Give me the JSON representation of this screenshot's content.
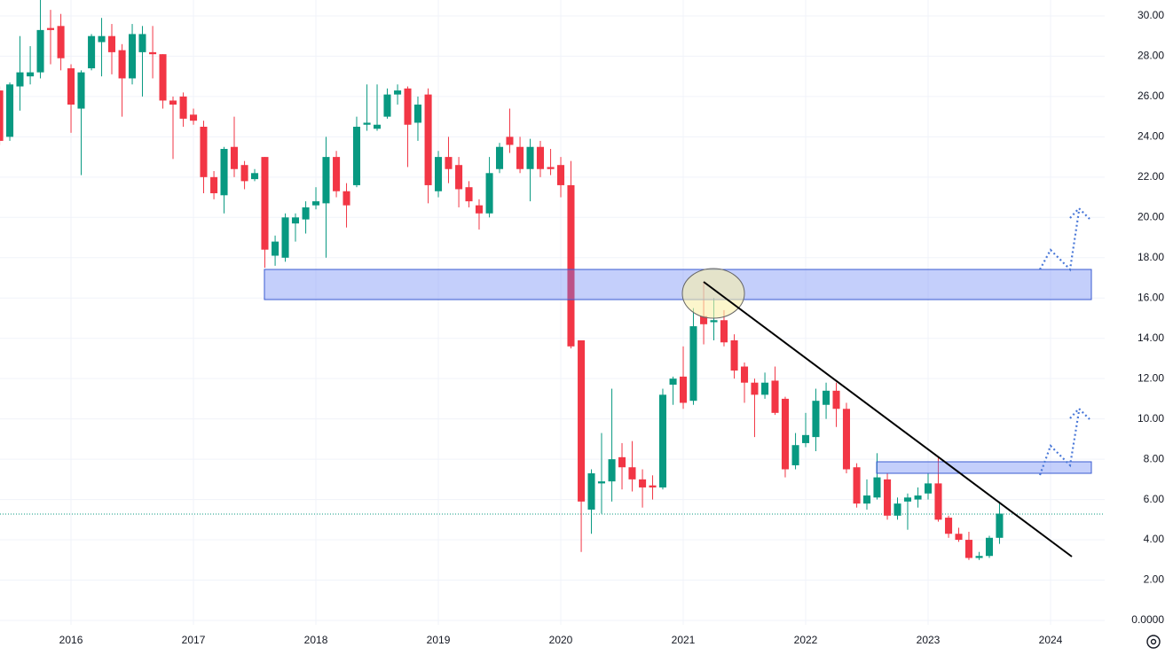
{
  "chart_data": {
    "type": "candlestick",
    "x": [
      2015.417,
      2015.5,
      2015.583,
      2015.667,
      2015.75,
      2015.833,
      2015.917,
      2016,
      2016.083,
      2016.167,
      2016.25,
      2016.333,
      2016.417,
      2016.5,
      2016.583,
      2016.667,
      2016.75,
      2016.833,
      2016.917,
      2017,
      2017.083,
      2017.167,
      2017.25,
      2017.333,
      2017.417,
      2017.5,
      2017.583,
      2017.667,
      2017.75,
      2017.833,
      2017.917,
      2018,
      2018.083,
      2018.167,
      2018.25,
      2018.333,
      2018.417,
      2018.5,
      2018.583,
      2018.667,
      2018.75,
      2018.833,
      2018.917,
      2019,
      2019.083,
      2019.167,
      2019.25,
      2019.333,
      2019.417,
      2019.5,
      2019.583,
      2019.667,
      2019.75,
      2019.833,
      2019.917,
      2020,
      2020.083,
      2020.167,
      2020.25,
      2020.333,
      2020.417,
      2020.5,
      2020.583,
      2020.667,
      2020.75,
      2020.833,
      2020.917,
      2021,
      2021.083,
      2021.167,
      2021.25,
      2021.333,
      2021.417,
      2021.5,
      2021.583,
      2021.667,
      2021.75,
      2021.833,
      2021.917,
      2022,
      2022.083,
      2022.167,
      2022.25,
      2022.333,
      2022.417,
      2022.5,
      2022.583,
      2022.667,
      2022.75,
      2022.833,
      2022.917,
      2023,
      2023.083,
      2023.167,
      2023.25,
      2023.333,
      2023.417,
      2023.5,
      2023.583
    ],
    "open": [
      26.3,
      24.0,
      26.5,
      27.0,
      27.2,
      29.4,
      29.5,
      27.4,
      25.4,
      27.4,
      28.7,
      29.0,
      28.3,
      26.9,
      28.2,
      28.2,
      28.1,
      25.8,
      26.0,
      25.1,
      24.5,
      22.0,
      21.1,
      23.5,
      22.6,
      21.9,
      23.0,
      18.1,
      18.0,
      19.7,
      19.9,
      20.6,
      20.7,
      23.0,
      21.3,
      21.6,
      24.6,
      24.4,
      25.0,
      26.1,
      26.4,
      24.7,
      26.1,
      21.3,
      23.0,
      22.6,
      21.5,
      20.6,
      20.2,
      22.4,
      24.0,
      23.5,
      22.4,
      23.5,
      22.5,
      22.6,
      21.6,
      13.9,
      5.5,
      6.8,
      6.9,
      8.1,
      7.6,
      7.0,
      6.7,
      6.6,
      11.7,
      12.1,
      10.9,
      15.1,
      14.8,
      14.9,
      13.9,
      12.6,
      11.8,
      11.2,
      11.9,
      11.0,
      7.7,
      8.8,
      9.1,
      10.7,
      11.4,
      10.5,
      7.6,
      5.8,
      6.1,
      7.0,
      5.2,
      5.9,
      6.0,
      6.3,
      6.8,
      5.1,
      4.3,
      4.0,
      3.1,
      3.2,
      4.1
    ],
    "high": [
      26.5,
      26.7,
      29.0,
      28.5,
      30.9,
      30.3,
      30.1,
      27.6,
      27.3,
      29.1,
      29.9,
      29.6,
      28.6,
      29.6,
      29.5,
      29.5,
      28.1,
      26.0,
      26.2,
      25.4,
      24.8,
      22.3,
      23.5,
      25.0,
      22.8,
      22.4,
      23.0,
      19.1,
      20.2,
      20.2,
      20.8,
      21.5,
      24.0,
      23.3,
      21.7,
      25.0,
      26.6,
      26.6,
      26.4,
      26.6,
      26.5,
      26.0,
      26.4,
      23.3,
      24.0,
      23.0,
      21.8,
      20.9,
      23.0,
      23.7,
      25.4,
      24.0,
      23.9,
      23.8,
      23.4,
      23.0,
      22.8,
      13.9,
      7.5,
      9.3,
      11.5,
      8.8,
      8.9,
      7.5,
      7.2,
      11.5,
      12.1,
      13.6,
      15.5,
      16.8,
      16.0,
      15.4,
      14.2,
      12.8,
      12.0,
      12.3,
      12.6,
      11.1,
      9.3,
      10.3,
      11.5,
      11.8,
      11.8,
      10.8,
      7.8,
      7.0,
      8.3,
      7.3,
      6.1,
      6.3,
      6.6,
      7.3,
      8.1,
      5.2,
      4.6,
      4.4,
      3.4,
      4.2,
      5.9
    ],
    "low": [
      23.6,
      23.8,
      25.3,
      26.6,
      26.9,
      27.6,
      27.3,
      24.2,
      22.1,
      27.3,
      27.0,
      27.1,
      25.0,
      26.6,
      26.0,
      26.9,
      25.4,
      22.9,
      24.5,
      24.6,
      21.2,
      20.9,
      20.2,
      22.0,
      21.4,
      21.8,
      17.5,
      17.6,
      17.8,
      18.8,
      19.2,
      20.4,
      18.0,
      21.0,
      19.5,
      21.5,
      24.3,
      24.3,
      24.9,
      25.6,
      22.5,
      23.8,
      20.7,
      21.0,
      21.7,
      20.5,
      20.5,
      19.4,
      20.0,
      22.2,
      23.2,
      22.2,
      20.8,
      22.0,
      22.1,
      21.0,
      13.5,
      3.4,
      4.3,
      5.3,
      5.9,
      6.5,
      6.4,
      5.6,
      6.0,
      6.5,
      10.7,
      10.5,
      10.7,
      13.7,
      13.9,
      13.6,
      12.0,
      10.8,
      9.1,
      11.0,
      10.2,
      7.1,
      7.5,
      8.6,
      8.4,
      10.0,
      9.6,
      7.3,
      5.6,
      5.5,
      6.0,
      5.0,
      5.0,
      4.5,
      5.6,
      6.0,
      4.9,
      4.1,
      3.9,
      3.0,
      3.0,
      3.1,
      3.8
    ],
    "close": [
      23.8,
      26.6,
      27.2,
      27.2,
      29.3,
      29.3,
      27.9,
      25.6,
      27.2,
      29.0,
      29.0,
      28.2,
      26.9,
      29.1,
      29.1,
      28.1,
      25.8,
      25.6,
      24.9,
      24.8,
      22.0,
      21.2,
      23.4,
      22.4,
      21.8,
      22.2,
      18.4,
      18.8,
      20.0,
      20.0,
      20.5,
      20.8,
      23.0,
      21.3,
      20.6,
      24.5,
      24.7,
      24.6,
      26.1,
      26.3,
      24.6,
      25.6,
      21.6,
      23.0,
      22.4,
      21.4,
      20.8,
      20.2,
      22.2,
      23.5,
      23.6,
      22.4,
      23.5,
      22.4,
      22.4,
      21.6,
      13.6,
      5.9,
      7.3,
      6.9,
      8.0,
      7.6,
      7.0,
      6.6,
      6.6,
      11.2,
      12.0,
      10.8,
      14.6,
      14.7,
      14.9,
      13.8,
      12.4,
      11.8,
      11.2,
      11.8,
      10.3,
      7.5,
      8.7,
      9.2,
      10.9,
      11.4,
      10.5,
      7.5,
      5.8,
      6.2,
      7.1,
      5.2,
      5.8,
      6.1,
      6.2,
      6.8,
      5.0,
      4.3,
      4.0,
      3.1,
      3.2,
      4.1,
      5.3
    ],
    "up_color": "#089981",
    "down_color": "#f23645",
    "xlim": [
      2015.42,
      2024.442
    ],
    "xticks": [
      2016,
      2017,
      2018,
      2019,
      2020,
      2021,
      2022,
      2023,
      2024
    ],
    "ylim": [
      -0.22,
      30.79
    ],
    "yticks": [
      {
        "value": 0,
        "label": "0.0000"
      },
      {
        "value": 2,
        "label": "2.00"
      },
      {
        "value": 4,
        "label": "4.00"
      },
      {
        "value": 6,
        "label": "6.00"
      },
      {
        "value": 8,
        "label": "8.00"
      },
      {
        "value": 10,
        "label": "10.00"
      },
      {
        "value": 12,
        "label": "12.00"
      },
      {
        "value": 14,
        "label": "14.00"
      },
      {
        "value": 16,
        "label": "16.00"
      },
      {
        "value": 18,
        "label": "18.00"
      },
      {
        "value": 20,
        "label": "20.00"
      },
      {
        "value": 22,
        "label": "22.00"
      },
      {
        "value": 24,
        "label": "24.00"
      },
      {
        "value": 26,
        "label": "26.00"
      },
      {
        "value": 28,
        "label": "28.00"
      },
      {
        "value": 30,
        "label": "30.00"
      }
    ],
    "grid": true
  }
}
